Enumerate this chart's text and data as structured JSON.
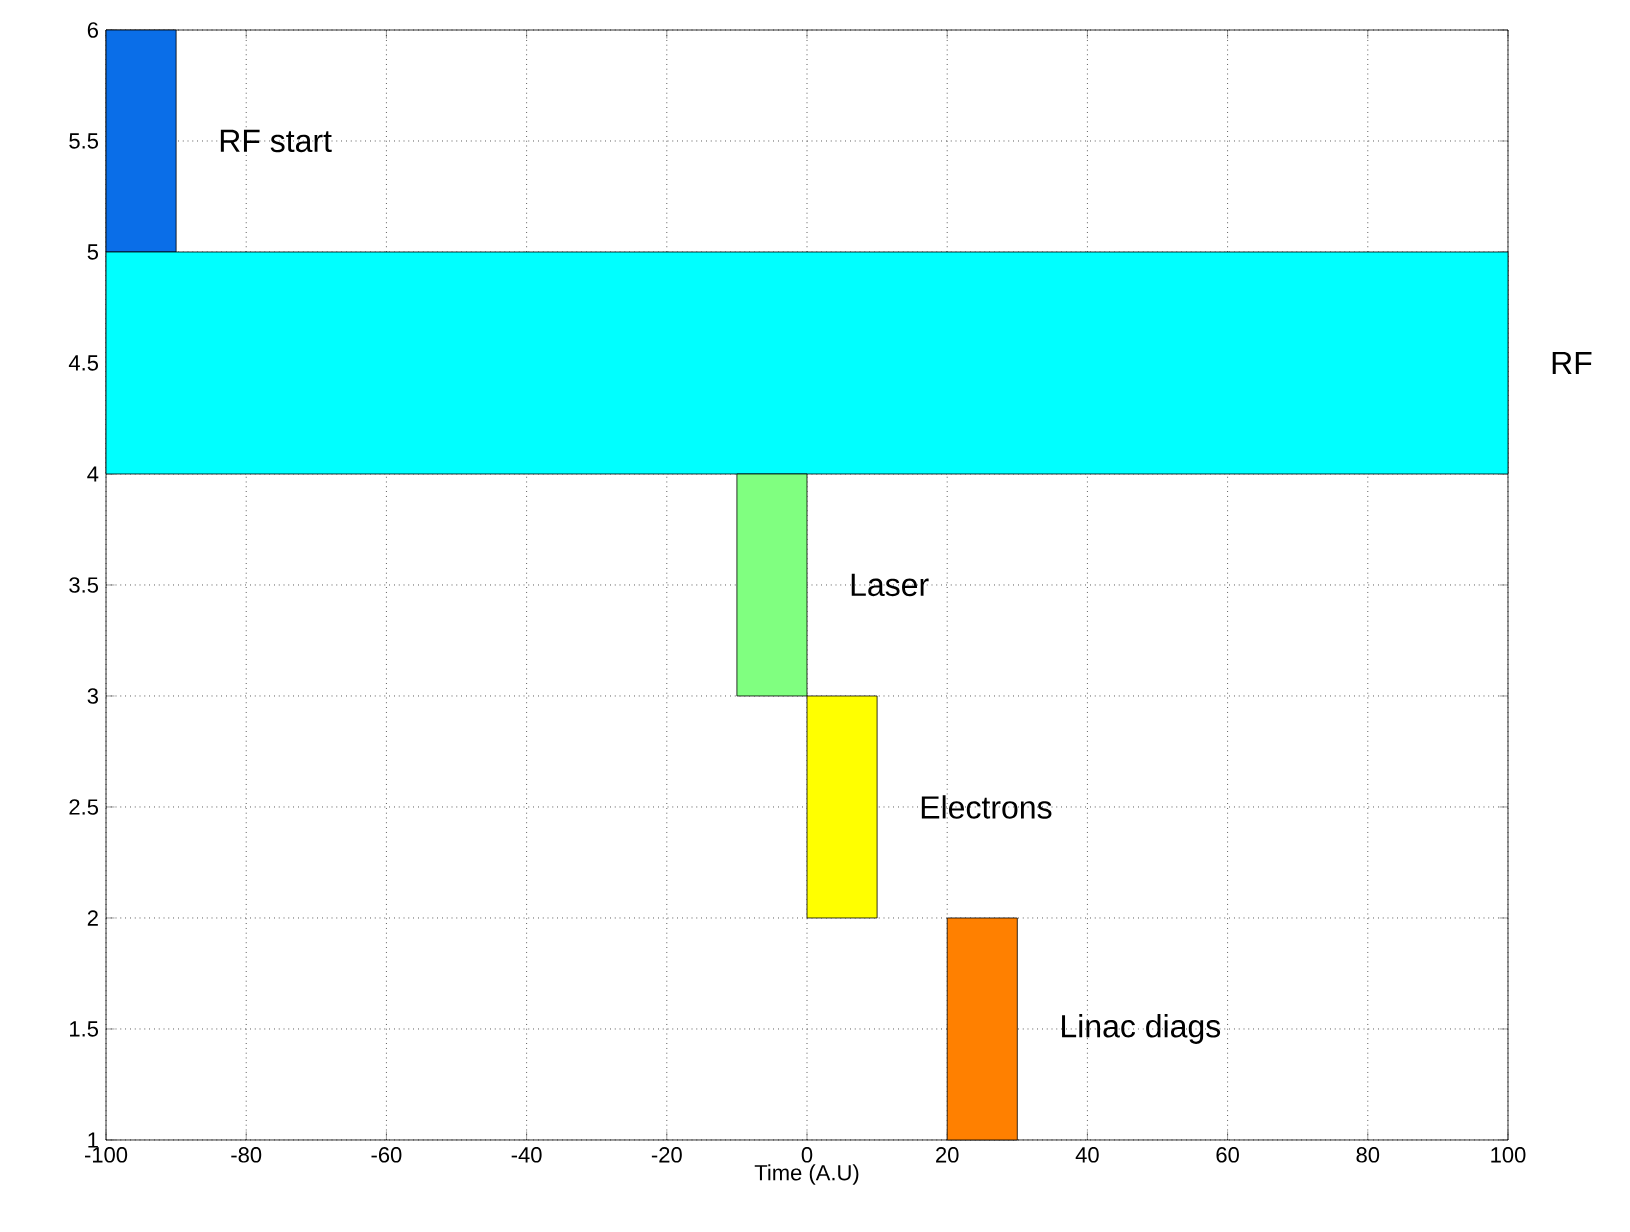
{
  "chart_data": {
    "type": "bar",
    "orientation": "horizontal",
    "xlabel": "Time (A.U)",
    "xlim": [
      -100,
      100
    ],
    "ylim": [
      1,
      6
    ],
    "xticks": [
      -100,
      -80,
      -60,
      -40,
      -20,
      0,
      20,
      40,
      60,
      80,
      100
    ],
    "yticks": [
      1,
      1.5,
      2,
      2.5,
      3,
      3.5,
      4,
      4.5,
      5,
      5.5,
      6
    ],
    "grid": true,
    "series": [
      {
        "name": "RF start",
        "color": "#0a6ee8",
        "x": [
          5.5
        ],
        "values": [
          10
        ],
        "base": [
          -100
        ]
      },
      {
        "name": "RF",
        "color": "#00ffff",
        "x": [
          4.5
        ],
        "values": [
          200
        ],
        "base": [
          -100
        ]
      },
      {
        "name": "Laser",
        "color": "#80ff80",
        "x": [
          3.5
        ],
        "values": [
          10
        ],
        "base": [
          -10
        ]
      },
      {
        "name": "Electrons",
        "color": "#ffff00",
        "x": [
          2.5
        ],
        "values": [
          10
        ],
        "base": [
          0
        ]
      },
      {
        "name": "Linac diags",
        "color": "#ff8000",
        "x": [
          1.5
        ],
        "values": [
          10
        ],
        "base": [
          20
        ]
      }
    ]
  }
}
